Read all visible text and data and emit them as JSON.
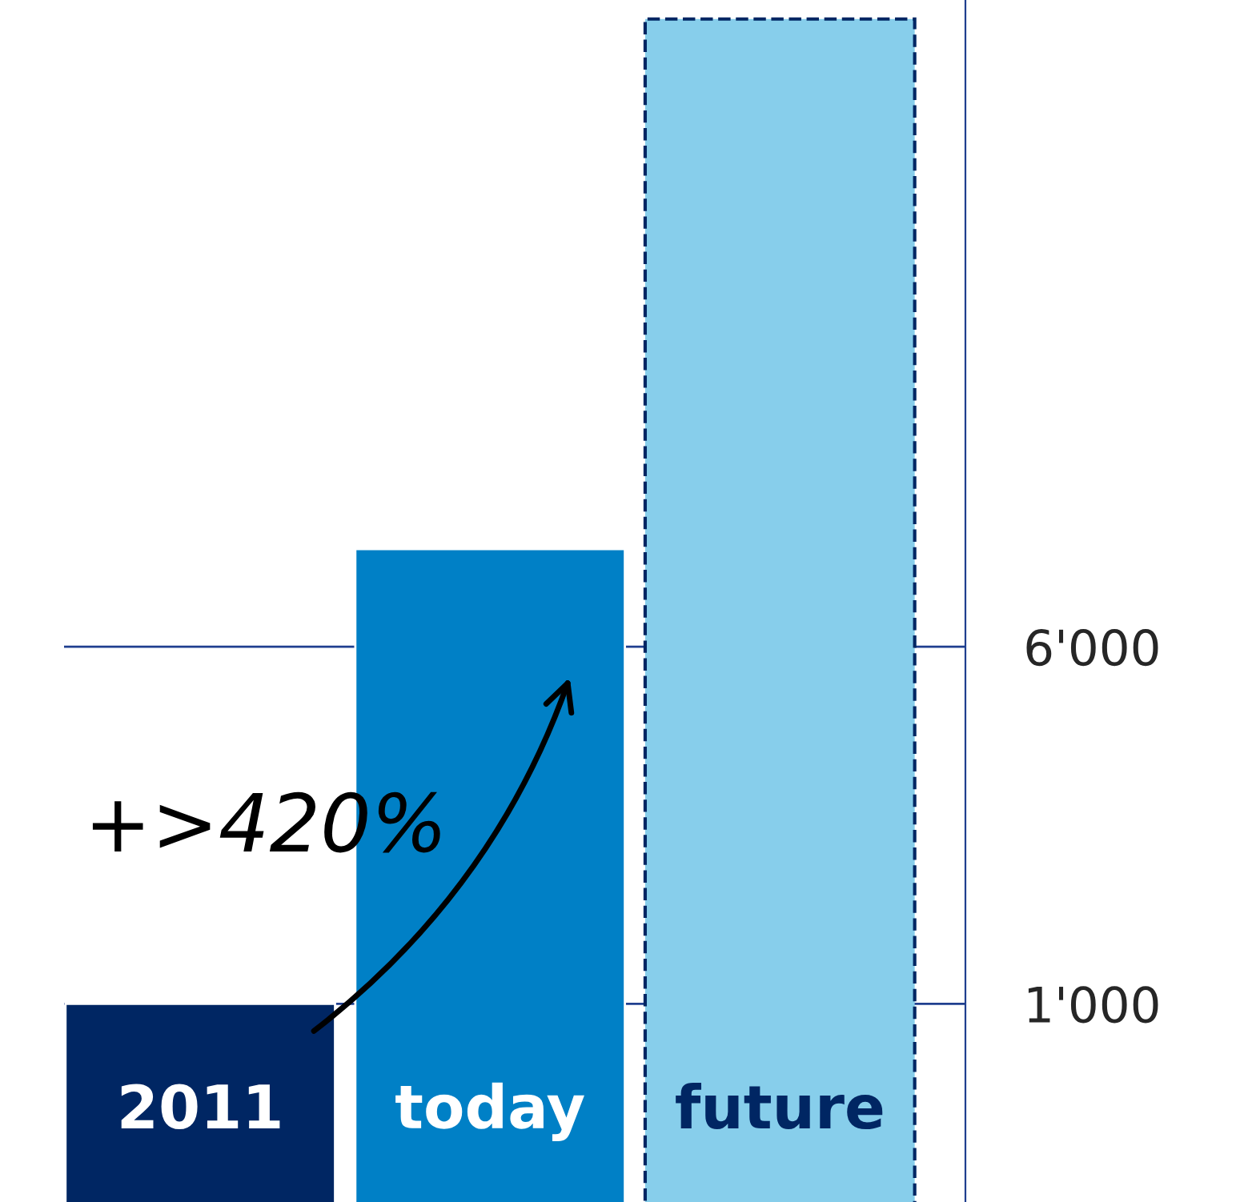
{
  "chart_data": {
    "type": "bar",
    "categories": [
      "2011",
      "today",
      "future"
    ],
    "values": [
      1000,
      9800,
      140000
    ],
    "colors": [
      "#002663",
      "#0080c6",
      "#87ceeb"
    ],
    "log": true,
    "ylim": [
      370,
      154000
    ],
    "yticks": [
      {
        "value": 1000,
        "label": "1'000"
      },
      {
        "value": 6000,
        "label": "6'000"
      }
    ],
    "grid": "y",
    "annotations": [
      "+>420%"
    ]
  }
}
